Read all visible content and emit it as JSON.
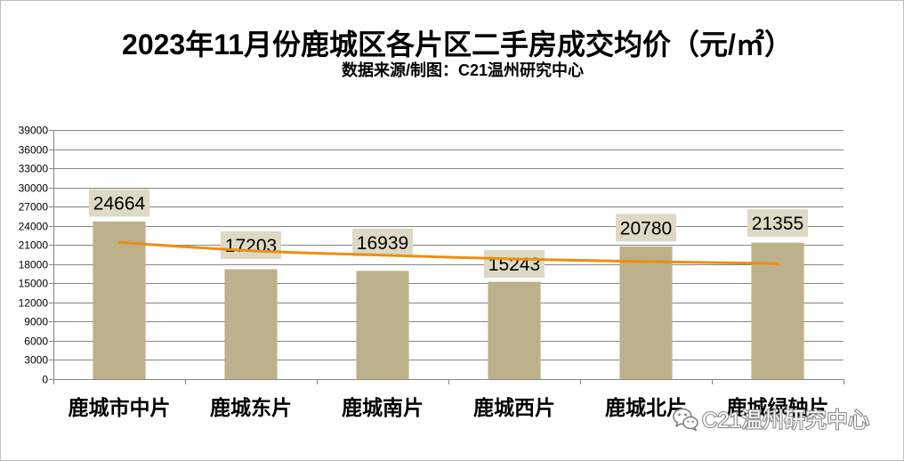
{
  "chart_data": {
    "type": "bar",
    "title": "2023年11月份鹿城区各片区二手房成交均价（元/㎡）",
    "subtitle": "数据来源/制图：C21温州研究中心",
    "categories": [
      "鹿城市中片",
      "鹿城东片",
      "鹿城南片",
      "鹿城西片",
      "鹿城北片",
      "鹿城绿轴片"
    ],
    "values": [
      24664,
      17203,
      16939,
      15243,
      20780,
      21355
    ],
    "data_labels": true,
    "ylim": [
      0,
      39000
    ],
    "yticks": [
      0,
      3000,
      6000,
      9000,
      12000,
      15000,
      18000,
      21000,
      24000,
      27000,
      30000,
      33000,
      36000,
      39000
    ],
    "grid": true,
    "legend": "none",
    "trendline": {
      "values": [
        21400,
        20100,
        19400,
        18800,
        18400,
        18100
      ]
    },
    "colors": {
      "bar": "#BDB18C",
      "data_label_box": "#DDD9C4",
      "trendline": "#EE8E10",
      "gridline": "#868686",
      "axis": "#868686"
    }
  },
  "watermark": {
    "text": "C21温州研究中心",
    "icon": "wechat-icon"
  }
}
